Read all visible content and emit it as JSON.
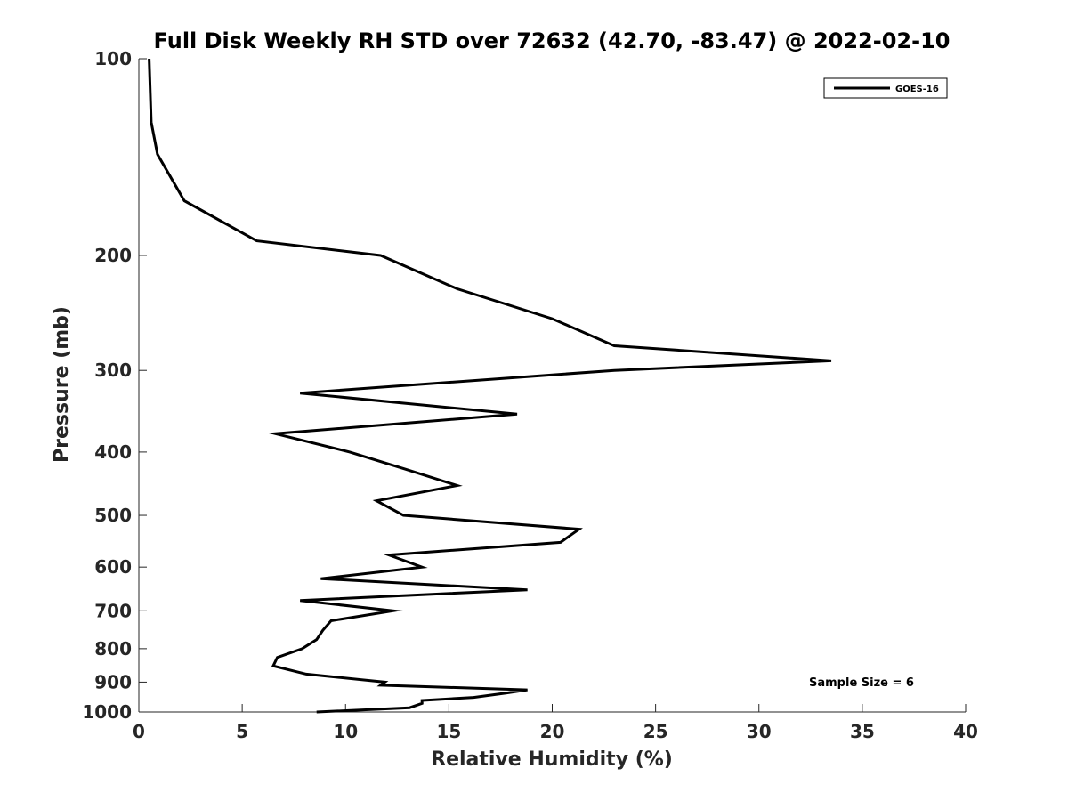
{
  "chart_data": {
    "type": "line",
    "title": "Full Disk Weekly RH STD over 72632 (42.70, -83.47) @ 2022-02-10",
    "xlabel": "Relative Humidity (%)",
    "ylabel": "Pressure (mb)",
    "xlim": [
      0,
      40
    ],
    "ylim": [
      100,
      1000
    ],
    "yscale": "log",
    "y_reversed": true,
    "x_ticks": [
      0,
      5,
      10,
      15,
      20,
      25,
      30,
      35,
      40
    ],
    "y_ticks": [
      100,
      200,
      300,
      400,
      500,
      600,
      700,
      800,
      900,
      1000
    ],
    "legend": {
      "position": "top-right",
      "entries": [
        "GOES-16"
      ]
    },
    "annotation": "Sample Size = 6",
    "series": [
      {
        "name": "GOES-16",
        "color": "#000000",
        "points": [
          [
            0.5,
            100
          ],
          [
            0.6,
            125
          ],
          [
            0.9,
            140
          ],
          [
            2.2,
            165
          ],
          [
            5.7,
            190
          ],
          [
            11.7,
            200
          ],
          [
            15.4,
            225
          ],
          [
            20.0,
            250
          ],
          [
            23.0,
            275
          ],
          [
            33.5,
            290
          ],
          [
            23.0,
            300
          ],
          [
            7.8,
            325
          ],
          [
            18.3,
            350
          ],
          [
            6.6,
            375
          ],
          [
            10.2,
            400
          ],
          [
            12.9,
            425
          ],
          [
            15.4,
            450
          ],
          [
            11.5,
            475
          ],
          [
            12.8,
            500
          ],
          [
            21.3,
            525
          ],
          [
            20.4,
            550
          ],
          [
            12.1,
            575
          ],
          [
            13.7,
            600
          ],
          [
            8.8,
            625
          ],
          [
            18.8,
            650
          ],
          [
            7.8,
            675
          ],
          [
            12.3,
            700
          ],
          [
            9.3,
            725
          ],
          [
            8.9,
            750
          ],
          [
            8.6,
            775
          ],
          [
            7.9,
            800
          ],
          [
            6.7,
            825
          ],
          [
            6.5,
            850
          ],
          [
            8.1,
            875
          ],
          [
            11.9,
            900
          ],
          [
            11.7,
            910
          ],
          [
            18.8,
            925
          ],
          [
            17.8,
            935
          ],
          [
            16.2,
            950
          ],
          [
            13.7,
            960
          ],
          [
            13.7,
            970
          ],
          [
            13.1,
            985
          ],
          [
            8.6,
            1000
          ]
        ]
      }
    ]
  }
}
